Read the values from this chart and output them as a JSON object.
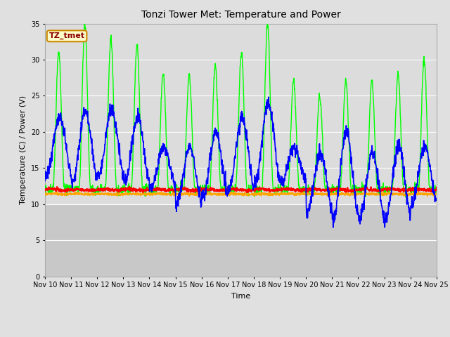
{
  "title": "Tonzi Tower Met: Temperature and Power",
  "xlabel": "Time",
  "ylabel": "Temperature (C) / Power (V)",
  "ylim": [
    0,
    35
  ],
  "yticks": [
    0,
    5,
    10,
    15,
    20,
    25,
    30,
    35
  ],
  "x_labels": [
    "Nov 10",
    "Nov 11",
    "Nov 12",
    "Nov 13",
    "Nov 14",
    "Nov 15",
    "Nov 16",
    "Nov 17",
    "Nov 18",
    "Nov 19",
    "Nov 20",
    "Nov 21",
    "Nov 22",
    "Nov 23",
    "Nov 24",
    "Nov 25"
  ],
  "panel_t_color": "#00FF00",
  "air_t_color": "#0000FF",
  "battery_v_color": "#FF0000",
  "solar_v_color": "#FFA500",
  "outer_bg_color": "#E0E0E0",
  "plot_bg_upper": "#DCDCDC",
  "plot_bg_lower": "#C8C8C8",
  "grid_color": "#FFFFFF",
  "watermark_text": "TZ_tmet",
  "watermark_bg": "#FFFFCC",
  "watermark_border": "#CC8800",
  "watermark_fg": "#8B0000",
  "n_days": 15,
  "samples_per_day": 96,
  "panel_t_peaks": [
    31,
    35,
    33,
    32,
    28,
    28,
    29,
    31,
    35,
    27,
    25,
    27,
    27,
    28,
    30
  ],
  "panel_t_base": 12.0,
  "air_t_peaks": [
    22,
    23,
    23,
    22,
    18,
    18,
    20,
    22,
    24,
    18,
    17,
    20,
    17,
    18,
    18
  ],
  "air_t_mins": [
    14,
    13,
    14,
    13,
    12,
    10,
    11,
    12,
    13,
    13,
    9,
    8,
    8,
    8,
    10
  ],
  "battery_v_mean": 12.0,
  "solar_v_mean": 11.4,
  "title_fontsize": 10,
  "label_fontsize": 8,
  "tick_fontsize": 7,
  "legend_fontsize": 8
}
